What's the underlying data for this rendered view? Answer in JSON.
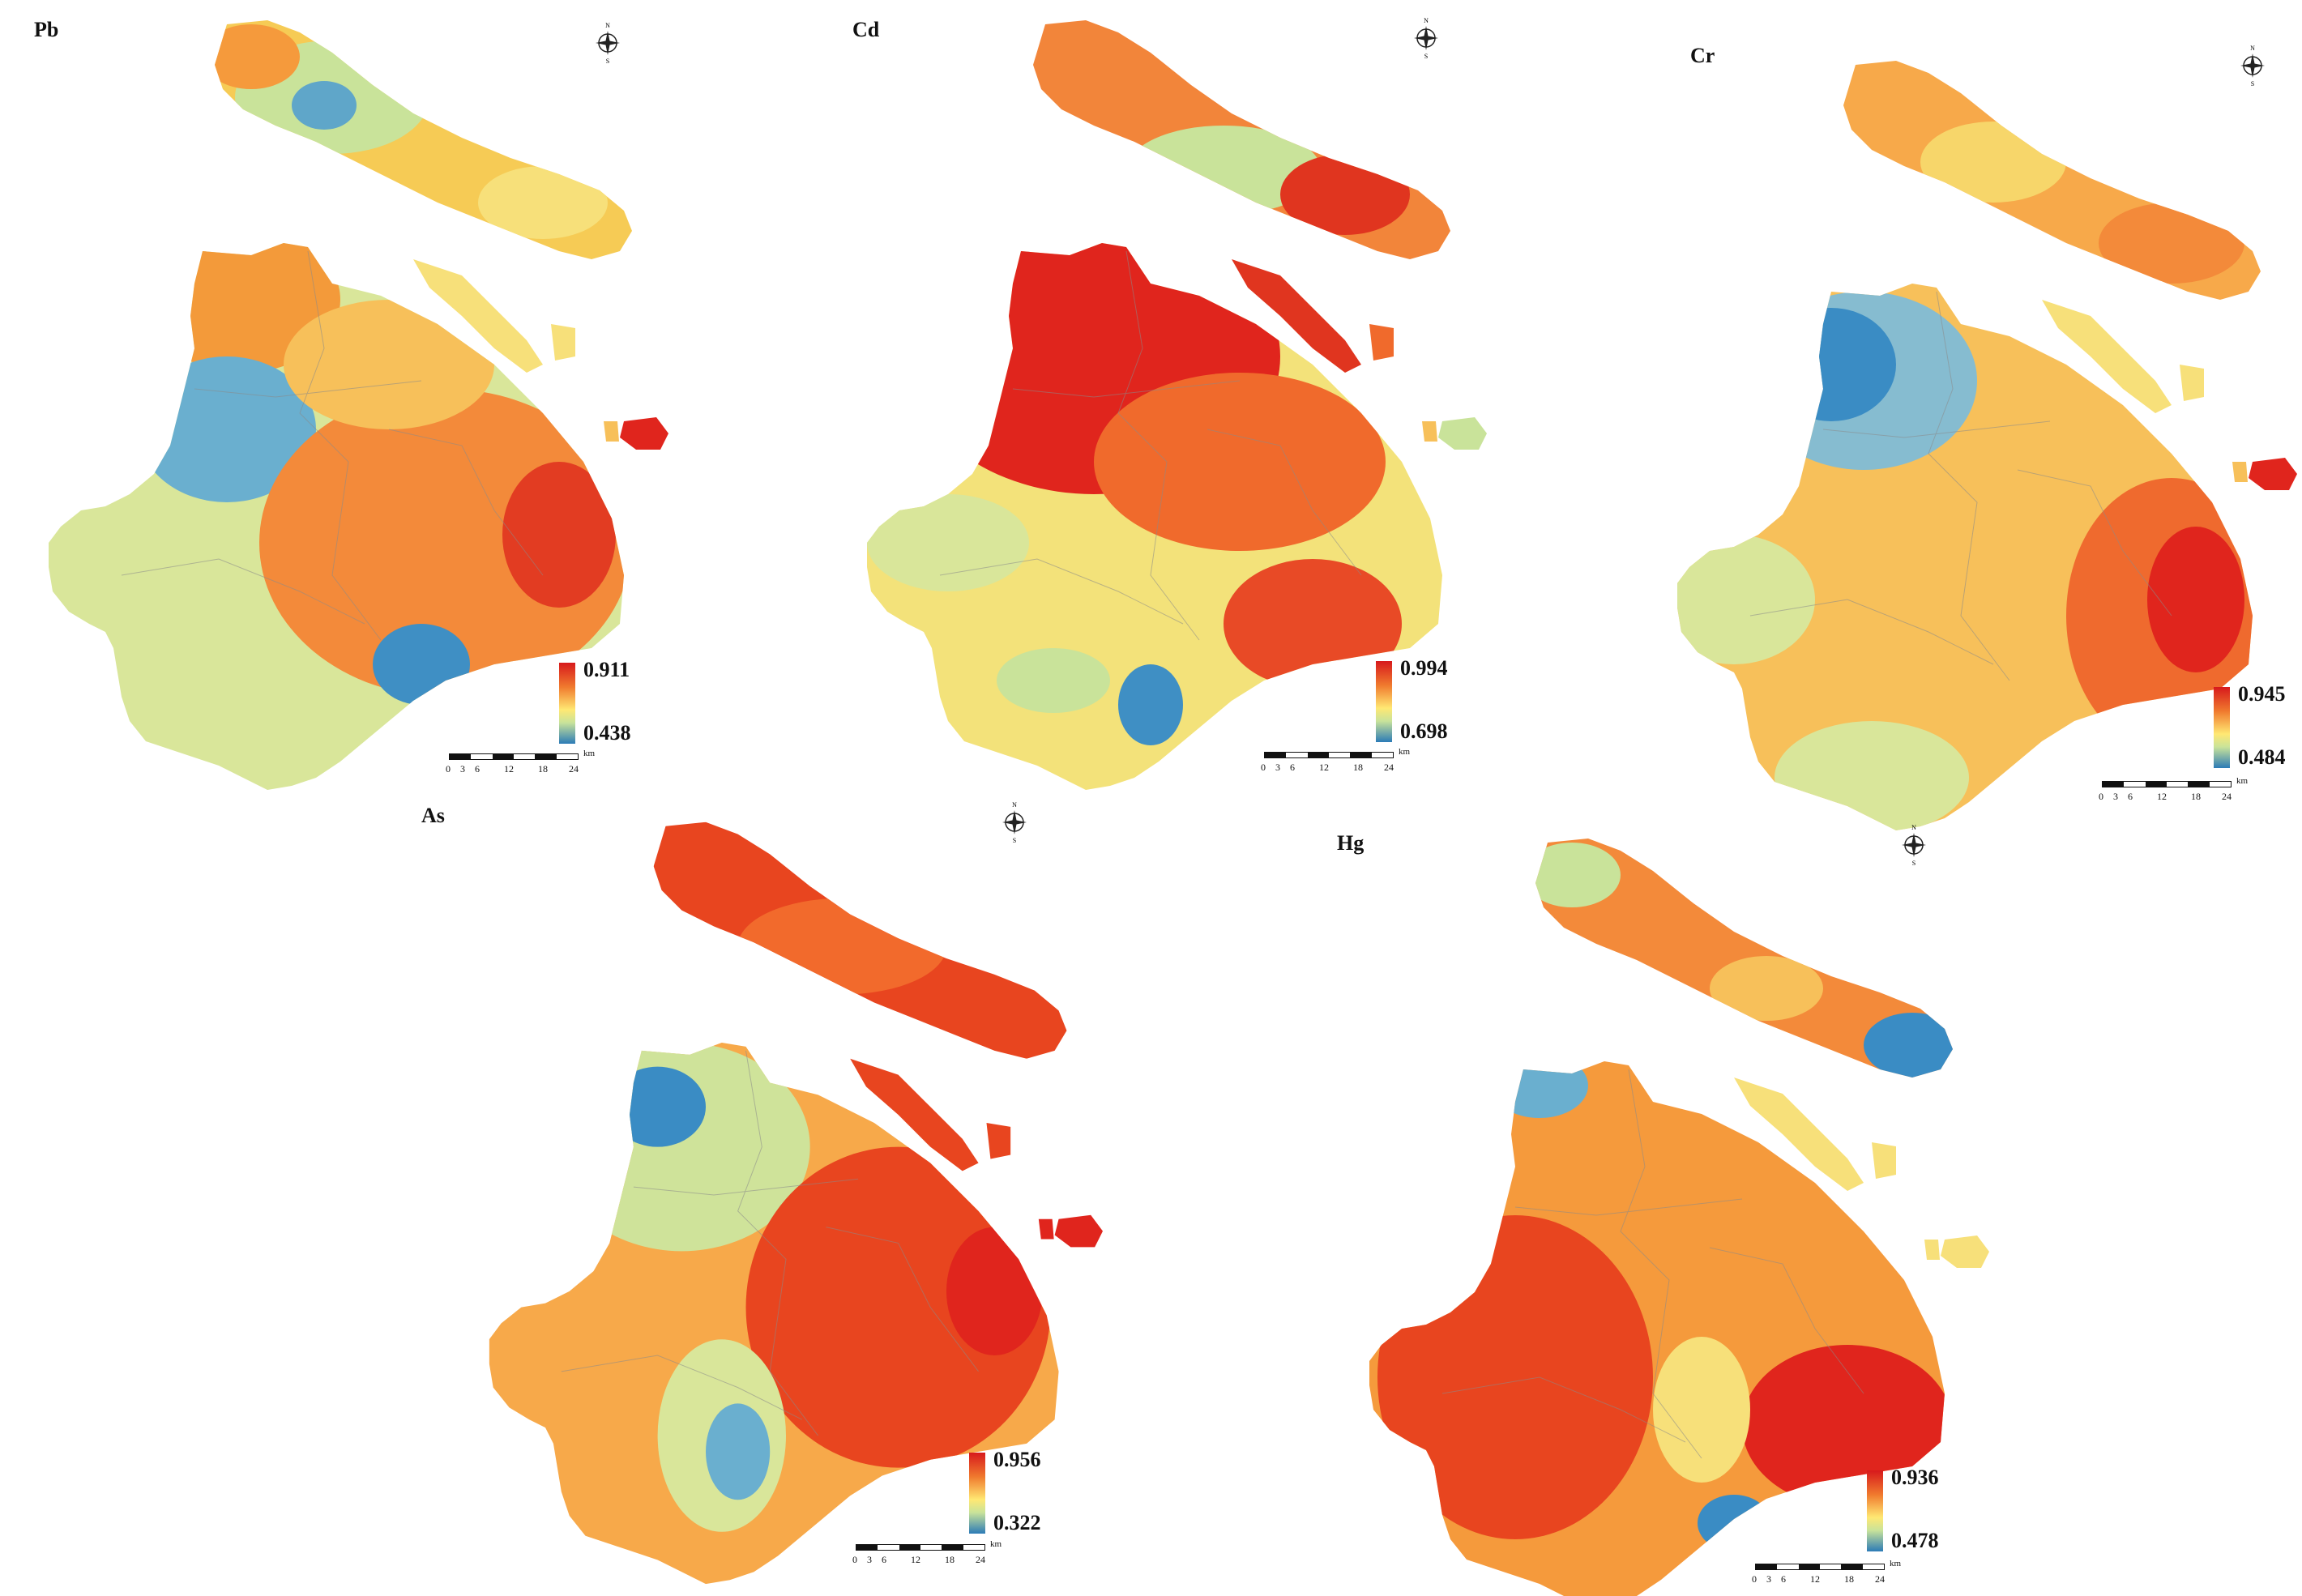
{
  "panels": [
    {
      "id": "pb",
      "title": "Pb",
      "legend_max": "0.911",
      "legend_min": "0.438"
    },
    {
      "id": "cd",
      "title": "Cd",
      "legend_max": "0.994",
      "legend_min": "0.698"
    },
    {
      "id": "cr",
      "title": "Cr",
      "legend_max": "0.945",
      "legend_min": "0.484"
    },
    {
      "id": "as",
      "title": "As",
      "legend_max": "0.956",
      "legend_min": "0.322"
    },
    {
      "id": "hg",
      "title": "Hg",
      "legend_max": "0.936",
      "legend_min": "0.478"
    }
  ],
  "compass": {
    "n": "N",
    "s": "S",
    "e": "E",
    "w": "W"
  },
  "scalebar": {
    "unit": "km",
    "ticks": [
      "0",
      "3",
      "6",
      "12",
      "18",
      "24"
    ]
  },
  "colors": {
    "high": "#d7191c",
    "mid_high": "#f07a2e",
    "mid": "#ffe873",
    "mid_low": "#c9e39a",
    "low": "#2c7bb6"
  }
}
